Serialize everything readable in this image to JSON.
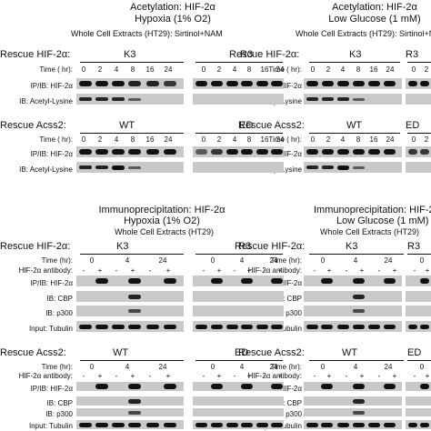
{
  "top_left": {
    "title1": "Acetylation: HIF-2α",
    "title2": "Hypoxia (1% O2)",
    "subtitle": "Whole Cell Extracts (HT29): Sirtinol+NAM",
    "rescue_hif": "Rescue HIF-2α:",
    "k3": "K3",
    "r3": "R3",
    "time_label": "Time ( hr):",
    "times": [
      "0",
      "2",
      "4",
      "8",
      "16",
      "24",
      "0",
      "2",
      "4",
      "8",
      "16",
      "24"
    ],
    "ip_label": "IP/IB: HIF-2α",
    "ib_acetyl": "IB: Acetyl-Lysine",
    "rescue_acss": "Rescue Acss2:",
    "wt": "WT",
    "ed": "ED"
  },
  "top_right": {
    "title1": "Acetylation: HIF-2α",
    "title2": "Low Glucose (1 mM)",
    "subtitle": "Whole Cell Extracts (HT29): Sirtinol+NAM",
    "rescue_hif": "Rescue HIF-2α:",
    "k3": "K3",
    "r3": "R3",
    "time_label": "Time ( hr):",
    "times": [
      "0",
      "2",
      "4",
      "8",
      "16",
      "24"
    ],
    "ip_label": "IP/IB: HIF-2α",
    "ib_acetyl": "IB: Acetyl-Lysine",
    "rescue_acss": "Rescue Acss2:",
    "wt": "WT",
    "ed": "ED"
  },
  "bottom_left": {
    "title1": "Immunoprecipitation: HIF-2α",
    "title2": "Hypoxia (1% O2)",
    "subtitle": "Whole Cell Extracts (HT29)",
    "rescue_hif": "Rescue HIF-2α:",
    "k3": "K3",
    "r3": "R3",
    "time_label": "Time (hr):",
    "times": [
      "0",
      "4",
      "24",
      "0",
      "4",
      "24"
    ],
    "ab_label": "HIF-2α antibody:",
    "pm": [
      "-",
      "+",
      "-",
      "+",
      "-",
      "+",
      "-",
      "+",
      "-",
      "+",
      "-",
      "+"
    ],
    "ip_label": "IP/IB: HIF-2α",
    "ib_cbp": "IB: CBP",
    "ib_p300": "IB: p300",
    "tubulin": "Input: Tubulin",
    "rescue_acss": "Rescue Acss2:",
    "wt": "WT",
    "ed": "ED"
  },
  "bottom_right": {
    "title1": "Immunoprecipitation: HIF-2",
    "title2": "Low Glucose (1 mM)",
    "subtitle": "Whole Cell Extracts (HT29)",
    "rescue_hif": "Rescue HIF-2α:",
    "k3": "K3",
    "r3": "R3",
    "time_label": "Time (hr):",
    "times": [
      "0",
      "4",
      "24"
    ],
    "ab_label": "HIF-2α antibody:",
    "pm": [
      "-",
      "+",
      "-",
      "+",
      "-",
      "+"
    ],
    "ip_label": "IP/IB: HIF-2α",
    "ib_cbp": "IB: CBP",
    "ib_p300": "IB: p300",
    "tubulin": "Input: Tubulin",
    "rescue_acss": "Rescue Acss2:",
    "wt": "WT",
    "ed": "ED"
  }
}
